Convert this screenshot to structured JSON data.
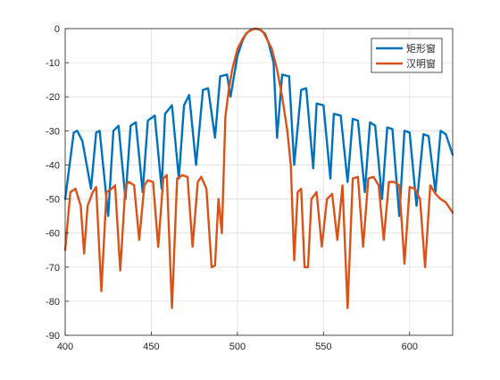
{
  "chart_data": {
    "type": "line",
    "xlim": [
      400,
      625
    ],
    "ylim": [
      -90,
      0
    ],
    "xticks": [
      400,
      450,
      500,
      550,
      600
    ],
    "yticks": [
      0,
      -10,
      -20,
      -30,
      -40,
      -50,
      -60,
      -70,
      -80,
      -90
    ],
    "grid": true,
    "legend_position": "top-right",
    "series": [
      {
        "name": "矩形窗",
        "color": "#0072BD",
        "center": 513,
        "null_spacing": 10.25,
        "description_values": "spectrum of rectangular window: sidelobe peaks approx -13, -18, -21, -23, -25, -27, -28, -29, -30 dB moving away from main lobe",
        "x": [
          400,
          405,
          407,
          410,
          415,
          418,
          420,
          425,
          428,
          431,
          435,
          438,
          441,
          445,
          448,
          452,
          456,
          458,
          462,
          466,
          469,
          472,
          476,
          480,
          483,
          487,
          490,
          494,
          496,
          500,
          503,
          505,
          508,
          510,
          513,
          516,
          518,
          521,
          523,
          526,
          530,
          533,
          537,
          540,
          544,
          546,
          550,
          554,
          556,
          560,
          564,
          567,
          570,
          574,
          577,
          580,
          584,
          587,
          590,
          594,
          597,
          600,
          604,
          608,
          611,
          615,
          618,
          621,
          625
        ],
        "y": [
          -50,
          -30.5,
          -30,
          -33,
          -47,
          -30.5,
          -30,
          -55,
          -30,
          -28.5,
          -50,
          -28.5,
          -27.5,
          -48,
          -27,
          -25.5,
          -47,
          -25,
          -22.5,
          -44,
          -22.5,
          -19.5,
          -40,
          -18,
          -17.5,
          -32,
          -14,
          -13.5,
          -20,
          -8,
          -3.5,
          -1.5,
          -0.3,
          0,
          -0.3,
          -1.5,
          -4,
          -10,
          -32,
          -13.5,
          -14,
          -40,
          -18,
          -17.5,
          -41,
          -22,
          -22.5,
          -44,
          -25,
          -25.5,
          -45,
          -26.5,
          -27,
          -48,
          -27.5,
          -28.5,
          -50,
          -29,
          -29.5,
          -55,
          -30,
          -30.5,
          -52,
          -31,
          -31.5,
          -48,
          -30,
          -31,
          -37
        ]
      },
      {
        "name": "汉明窗",
        "color": "#D95319",
        "description_values": "spectrum of Hamming window: wide main lobe, sidelobes approx -43 to -55 dB with deep nulls",
        "x": [
          400,
          403,
          406,
          409,
          411,
          413,
          416,
          418,
          421,
          424,
          427,
          429,
          432,
          435,
          437,
          440,
          443,
          446,
          448,
          451,
          454,
          457,
          459,
          462,
          465,
          468,
          471,
          474,
          477,
          479,
          482,
          485,
          487,
          489,
          491,
          493,
          495,
          497,
          500,
          503,
          506,
          509,
          511,
          513,
          515,
          517,
          520,
          523,
          526,
          529,
          531,
          533,
          535,
          537,
          539,
          541,
          543,
          546,
          549,
          552,
          555,
          558,
          561,
          564,
          567,
          570,
          573,
          576,
          579,
          582,
          585,
          588,
          591,
          594,
          597,
          600,
          603,
          606,
          609,
          612,
          615,
          618,
          621,
          625
        ],
        "y": [
          -65,
          -48,
          -47,
          -52,
          -66,
          -52,
          -48,
          -46.5,
          -77,
          -48,
          -47,
          -46,
          -71,
          -46,
          -45,
          -46,
          -62,
          -46,
          -44.5,
          -45,
          -64,
          -44,
          -43,
          -82,
          -44,
          -43,
          -43.5,
          -64,
          -45,
          -43.5,
          -47,
          -70,
          -69.5,
          -50,
          -60,
          -26,
          -18,
          -12,
          -6,
          -3,
          -1,
          -0.2,
          0,
          -0.2,
          -1,
          -3,
          -6,
          -12,
          -20,
          -30,
          -40,
          -68,
          -48,
          -47,
          -70,
          -70,
          -50,
          -48,
          -64,
          -50,
          -48.5,
          -62,
          -46,
          -82,
          -44,
          -43.5,
          -64,
          -44,
          -43.5,
          -46,
          -62,
          -45,
          -45,
          -46,
          -69,
          -46.5,
          -47,
          -50,
          -70,
          -46,
          -48.5,
          -50,
          -51,
          -54
        ]
      }
    ]
  }
}
